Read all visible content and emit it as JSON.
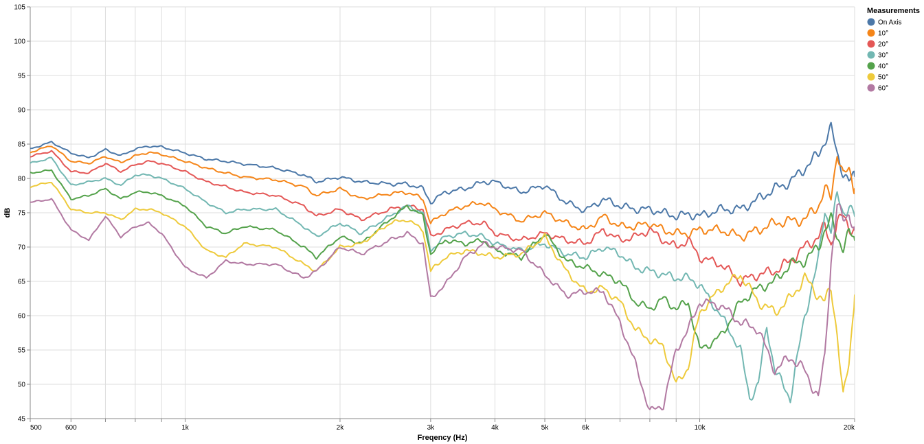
{
  "chart_data": {
    "type": "line",
    "title": "",
    "xlabel": "Freqency (Hz)",
    "ylabel": "dB",
    "x_scale": "log",
    "xlim": [
      500,
      20000
    ],
    "ylim": [
      45,
      105
    ],
    "grid": true,
    "legend_title": "Measurements",
    "legend_position": "right",
    "x_ticks": [
      500,
      600,
      700,
      800,
      900,
      1000,
      2000,
      3000,
      4000,
      5000,
      6000,
      7000,
      8000,
      9000,
      10000,
      20000
    ],
    "x_tick_labels": [
      "500",
      "600",
      "",
      "",
      "",
      "1k",
      "2k",
      "3k",
      "4k",
      "5k",
      "6k",
      "",
      "",
      "",
      "10k",
      "20k"
    ],
    "y_ticks": [
      45,
      50,
      55,
      60,
      65,
      70,
      75,
      80,
      85,
      90,
      95,
      100,
      105
    ],
    "y_tick_labels": [
      "45",
      "50",
      "55",
      "60",
      "65",
      "70",
      "75",
      "80",
      "85",
      "90",
      "95",
      "100",
      "105"
    ],
    "series": [
      {
        "name": "On Axis",
        "color": "#4c78a8",
        "x": [
          500,
          550,
          600,
          650,
          700,
          750,
          800,
          850,
          900,
          1000,
          1100,
          1200,
          1300,
          1500,
          1700,
          1800,
          2000,
          2200,
          2500,
          2700,
          2900,
          3000,
          3200,
          3500,
          3800,
          4000,
          4500,
          5000,
          5500,
          6000,
          6500,
          7000,
          7500,
          8000,
          8500,
          9000,
          9500,
          10000,
          11000,
          12000,
          13000,
          14000,
          15000,
          16000,
          17000,
          17500,
          18000,
          18500,
          19000,
          19500,
          20000
        ],
        "y": [
          84.3,
          85.3,
          83.7,
          83.0,
          84.2,
          83.3,
          84.3,
          84.7,
          84.6,
          83.7,
          82.8,
          82.5,
          82.1,
          81.5,
          80.5,
          79.5,
          80.2,
          79.5,
          79.2,
          79.2,
          78.5,
          76.5,
          78.0,
          78.5,
          79.5,
          79.5,
          78.0,
          79.0,
          76.5,
          75.3,
          77.0,
          76.0,
          75.5,
          75.5,
          75.0,
          74.5,
          74.8,
          74.5,
          75.5,
          75.5,
          77.0,
          78.5,
          79.5,
          81.5,
          83.5,
          85.5,
          87.3,
          83.5,
          81.0,
          79.5,
          80.3
        ]
      },
      {
        "name": "10°",
        "color": "#f58518",
        "x": [
          500,
          550,
          600,
          650,
          700,
          750,
          800,
          850,
          900,
          1000,
          1100,
          1200,
          1300,
          1500,
          1700,
          1800,
          2000,
          2200,
          2500,
          2700,
          2900,
          3000,
          3200,
          3500,
          3800,
          4000,
          4500,
          5000,
          5500,
          6000,
          6500,
          7000,
          7500,
          8000,
          8500,
          9000,
          9500,
          10000,
          11000,
          12000,
          13000,
          14000,
          15000,
          16000,
          17000,
          17500,
          18000,
          18500,
          19000,
          19500,
          20000
        ],
        "y": [
          83.8,
          84.8,
          82.5,
          82.2,
          83.2,
          82.3,
          83.3,
          83.8,
          83.5,
          82.5,
          81.5,
          80.8,
          80.2,
          79.8,
          78.8,
          77.5,
          78.5,
          77.0,
          77.8,
          78.0,
          77.0,
          73.5,
          75.0,
          76.0,
          76.5,
          75.5,
          73.8,
          75.0,
          73.5,
          72.5,
          74.5,
          73.0,
          73.0,
          73.5,
          72.5,
          72.0,
          72.0,
          72.5,
          72.5,
          71.5,
          72.5,
          73.5,
          73.8,
          74.0,
          76.0,
          78.5,
          77.0,
          84.0,
          80.5,
          81.0,
          78.5
        ]
      },
      {
        "name": "20°",
        "color": "#e45756",
        "x": [
          500,
          550,
          600,
          650,
          700,
          750,
          800,
          850,
          900,
          1000,
          1100,
          1200,
          1300,
          1500,
          1700,
          1800,
          2000,
          2200,
          2500,
          2700,
          2900,
          3000,
          3200,
          3500,
          3800,
          4000,
          4500,
          5000,
          5500,
          6000,
          6500,
          7000,
          7500,
          8000,
          8500,
          9000,
          9500,
          10000,
          11000,
          12000,
          13000,
          14000,
          15000,
          16000,
          17000,
          17500,
          18000,
          18500,
          19000,
          19500,
          20000
        ],
        "y": [
          83.2,
          84.0,
          81.0,
          80.8,
          82.2,
          81.0,
          82.0,
          82.5,
          82.2,
          81.0,
          79.5,
          78.8,
          78.0,
          77.5,
          76.0,
          74.5,
          75.5,
          74.0,
          75.5,
          76.0,
          75.5,
          71.5,
          72.5,
          73.5,
          73.5,
          72.0,
          71.0,
          72.0,
          71.0,
          70.5,
          72.5,
          71.0,
          71.5,
          72.5,
          71.0,
          70.0,
          71.0,
          68.5,
          67.5,
          65.0,
          66.0,
          66.5,
          68.0,
          70.0,
          71.5,
          73.0,
          70.5,
          73.5,
          74.5,
          73.0,
          72.5
        ]
      },
      {
        "name": "30°",
        "color": "#72b7b2",
        "x": [
          500,
          550,
          600,
          650,
          700,
          750,
          800,
          850,
          900,
          1000,
          1100,
          1200,
          1300,
          1500,
          1700,
          1800,
          2000,
          2200,
          2500,
          2700,
          2900,
          3000,
          3200,
          3500,
          3800,
          4000,
          4500,
          5000,
          5500,
          6000,
          6500,
          7000,
          7500,
          8000,
          8500,
          9000,
          9500,
          10000,
          11000,
          12000,
          12500,
          13000,
          13500,
          14000,
          15000,
          16000,
          17000,
          17500,
          18000,
          18500,
          19000,
          19500,
          20000
        ],
        "y": [
          82.2,
          83.0,
          79.0,
          79.5,
          80.0,
          79.0,
          80.5,
          80.5,
          80.0,
          78.5,
          76.5,
          75.0,
          75.5,
          75.5,
          73.0,
          71.5,
          73.5,
          72.0,
          74.5,
          76.0,
          75.0,
          69.5,
          71.5,
          72.0,
          71.5,
          70.5,
          69.5,
          70.5,
          69.0,
          68.5,
          70.0,
          69.0,
          67.0,
          66.5,
          66.0,
          65.5,
          65.5,
          64.5,
          60.0,
          55.0,
          48.0,
          50.0,
          58.5,
          52.0,
          48.0,
          60.0,
          68.0,
          75.5,
          72.5,
          77.5,
          75.0,
          76.0,
          74.5
        ]
      },
      {
        "name": "40°",
        "color": "#54a24b",
        "x": [
          500,
          550,
          600,
          650,
          700,
          750,
          800,
          850,
          900,
          1000,
          1100,
          1200,
          1300,
          1500,
          1700,
          1800,
          2000,
          2200,
          2500,
          2700,
          2900,
          3000,
          3200,
          3500,
          3800,
          4000,
          4500,
          5000,
          5500,
          6000,
          6500,
          7000,
          7500,
          8000,
          8500,
          9000,
          9500,
          10000,
          11000,
          12000,
          13000,
          14000,
          15000,
          16000,
          17000,
          17500,
          18000,
          18500,
          19000,
          19500,
          20000
        ],
        "y": [
          80.8,
          81.2,
          77.0,
          77.5,
          78.5,
          77.0,
          78.0,
          78.0,
          77.5,
          76.0,
          73.0,
          72.0,
          73.0,
          72.5,
          70.0,
          68.5,
          71.5,
          70.5,
          74.0,
          76.0,
          74.5,
          69.0,
          71.0,
          70.5,
          71.0,
          69.5,
          68.5,
          72.0,
          68.0,
          67.0,
          66.0,
          65.0,
          62.0,
          61.0,
          62.5,
          61.0,
          62.0,
          55.0,
          57.0,
          62.0,
          64.0,
          65.0,
          67.5,
          68.0,
          70.0,
          72.5,
          74.0,
          71.5,
          70.0,
          72.0,
          71.0
        ]
      },
      {
        "name": "50°",
        "color": "#eeca3b",
        "x": [
          500,
          550,
          600,
          650,
          700,
          750,
          800,
          850,
          900,
          1000,
          1100,
          1200,
          1300,
          1500,
          1700,
          1800,
          2000,
          2200,
          2500,
          2700,
          2900,
          3000,
          3200,
          3500,
          3800,
          4000,
          4500,
          5000,
          5500,
          6000,
          6500,
          7000,
          7500,
          8000,
          8500,
          9000,
          9500,
          10000,
          11000,
          12000,
          13000,
          14000,
          15000,
          16000,
          17000,
          17500,
          18000,
          18500,
          19000,
          19500,
          20000
        ],
        "y": [
          78.8,
          79.5,
          75.5,
          75.0,
          75.0,
          74.0,
          75.5,
          75.5,
          75.0,
          73.0,
          69.5,
          68.5,
          70.5,
          70.0,
          67.5,
          66.5,
          70.0,
          70.5,
          73.5,
          74.0,
          72.5,
          66.5,
          68.5,
          69.5,
          69.0,
          68.5,
          69.0,
          71.5,
          66.5,
          63.5,
          64.0,
          62.0,
          58.0,
          56.5,
          55.5,
          50.0,
          52.5,
          60.5,
          64.0,
          66.0,
          62.0,
          60.5,
          62.5,
          65.5,
          63.0,
          62.0,
          64.0,
          57.5,
          48.0,
          53.0,
          63.0
        ]
      },
      {
        "name": "60°",
        "color": "#b279a2",
        "x": [
          500,
          550,
          600,
          650,
          700,
          750,
          800,
          850,
          900,
          1000,
          1100,
          1200,
          1300,
          1500,
          1700,
          1800,
          2000,
          2200,
          2500,
          2700,
          2900,
          3000,
          3200,
          3500,
          3800,
          4000,
          4500,
          5000,
          5500,
          6000,
          6500,
          7000,
          7500,
          8000,
          8500,
          9000,
          9500,
          10000,
          11000,
          12000,
          13000,
          14000,
          15000,
          16000,
          17000,
          17500,
          18000,
          18500,
          19000,
          19500,
          20000
        ],
        "y": [
          76.5,
          77.0,
          72.5,
          71.0,
          74.5,
          71.5,
          73.0,
          73.5,
          72.0,
          67.0,
          65.5,
          68.0,
          67.5,
          67.5,
          65.5,
          66.5,
          70.0,
          69.0,
          71.0,
          72.0,
          70.5,
          62.5,
          64.5,
          68.5,
          70.5,
          70.0,
          69.5,
          66.0,
          63.0,
          63.5,
          63.5,
          59.0,
          53.0,
          46.0,
          47.0,
          55.0,
          58.0,
          62.0,
          61.5,
          59.0,
          58.0,
          52.0,
          54.0,
          52.0,
          48.0,
          54.0,
          68.0,
          76.0,
          74.0,
          75.0,
          72.5
        ]
      }
    ]
  }
}
